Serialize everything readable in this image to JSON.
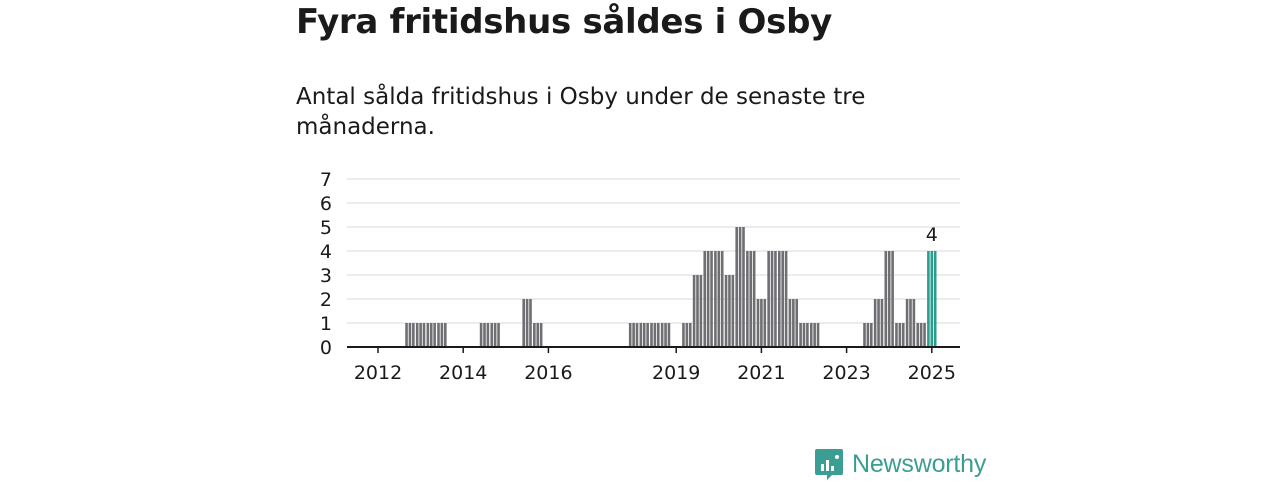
{
  "header": {
    "title": "Fyra fritidshus såldes i Osby",
    "subtitle": "Antal sålda fritidshus i Osby under de senaste tre månaderna."
  },
  "brand": {
    "name": "Newsworthy",
    "icon": "newsworthy-logo-icon",
    "color": "#3c9d93"
  },
  "chart_data": {
    "type": "bar",
    "xlabel": "",
    "ylabel": "",
    "ylim": [
      0,
      7
    ],
    "yticks": [
      "0",
      "1",
      "2",
      "3",
      "4",
      "5",
      "6",
      "7"
    ],
    "xticks": [
      "2012",
      "2014",
      "2016",
      "2019",
      "2021",
      "2023",
      "2025"
    ],
    "grid": true,
    "bar_color": "#6e6e73",
    "highlight_color": "#2a9d8f",
    "highlight_label": "4",
    "period": "quarterly",
    "x": [
      "2012-Q1",
      "2012-Q2",
      "2012-Q3",
      "2012-Q4",
      "2013-Q1",
      "2013-Q2",
      "2013-Q3",
      "2013-Q4",
      "2014-Q1",
      "2014-Q2",
      "2014-Q3",
      "2014-Q4",
      "2015-Q1",
      "2015-Q2",
      "2015-Q3",
      "2015-Q4",
      "2016-Q1",
      "2016-Q2",
      "2016-Q3",
      "2016-Q4",
      "2017-Q1",
      "2017-Q2",
      "2017-Q3",
      "2017-Q4",
      "2018-Q1",
      "2018-Q2",
      "2018-Q3",
      "2018-Q4",
      "2019-Q1",
      "2019-Q2",
      "2019-Q3",
      "2019-Q4",
      "2020-Q1",
      "2020-Q2",
      "2020-Q3",
      "2020-Q4",
      "2021-Q1",
      "2021-Q2",
      "2021-Q3",
      "2021-Q4",
      "2022-Q1",
      "2022-Q2",
      "2022-Q3",
      "2022-Q4",
      "2023-Q1",
      "2023-Q2",
      "2023-Q3",
      "2023-Q4",
      "2024-Q1",
      "2024-Q2",
      "2024-Q3",
      "2024-Q4",
      "2025-Q1"
    ],
    "values": [
      0,
      0,
      0,
      1,
      1,
      1,
      1,
      0,
      0,
      0,
      1,
      1,
      0,
      0,
      2,
      1,
      0,
      0,
      0,
      0,
      0,
      0,
      0,
      0,
      1,
      1,
      1,
      1,
      0,
      1,
      3,
      4,
      4,
      3,
      5,
      4,
      2,
      4,
      4,
      2,
      1,
      1,
      0,
      0,
      0,
      0,
      1,
      2,
      4,
      1,
      2,
      1,
      4
    ],
    "highlight_index": 52
  }
}
